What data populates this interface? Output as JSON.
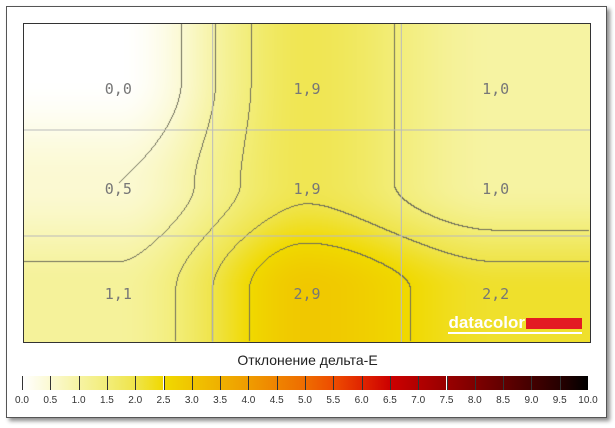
{
  "chart_data": {
    "type": "heatmap",
    "title": "Отклонение дельта-E",
    "grid": true,
    "rows": 3,
    "cols": 3,
    "values": [
      [
        0.0,
        1.9,
        1.0
      ],
      [
        0.5,
        1.9,
        1.0
      ],
      [
        1.1,
        2.9,
        2.2
      ]
    ],
    "labels": [
      [
        "0,0",
        "1,9",
        "1,0"
      ],
      [
        "0,5",
        "1,9",
        "1,0"
      ],
      [
        "1,1",
        "2,9",
        "2,2"
      ]
    ],
    "colorbar": {
      "range": [
        0,
        10
      ],
      "ticks": [
        "0.0",
        "0.5",
        "1.0",
        "1.5",
        "2.0",
        "2.5",
        "3.0",
        "3.5",
        "4.0",
        "4.5",
        "5.0",
        "5.5",
        "6.0",
        "6.5",
        "7.0",
        "7.5",
        "8.0",
        "8.5",
        "9.0",
        "9.5",
        "10.0"
      ],
      "colors": [
        "#ffffff",
        "#fbf9d2",
        "#f6f3a2",
        "#f2ed78",
        "#efe44a",
        "#f0d900",
        "#f0c400",
        "#efb000",
        "#ef9c00",
        "#ef8300",
        "#ee6c00",
        "#ee4c00",
        "#e02400",
        "#cc0000",
        "#b20000",
        "#980000",
        "#7e0000",
        "#620000",
        "#440000",
        "#260000",
        "#000000"
      ]
    }
  },
  "logo": "datacolor"
}
